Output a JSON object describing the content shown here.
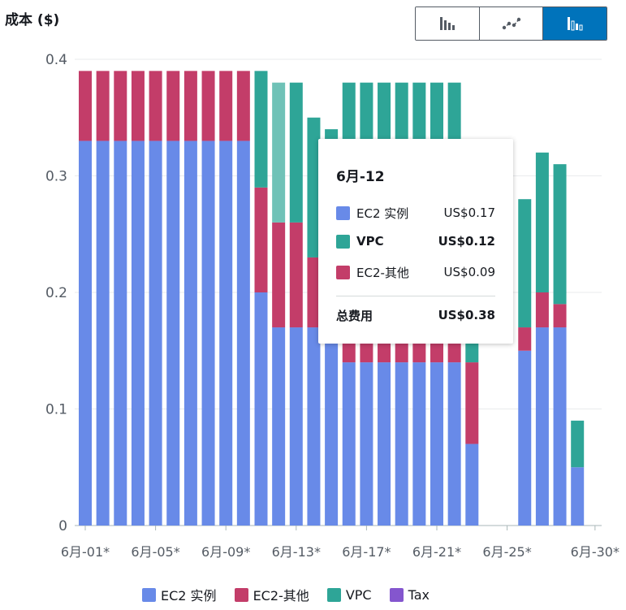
{
  "header": {
    "y_title": "成本 ($)"
  },
  "toggles": [
    {
      "name": "bar-chart-icon",
      "active": false
    },
    {
      "name": "line-chart-icon",
      "active": false
    },
    {
      "name": "stacked-bar-chart-icon",
      "active": true
    }
  ],
  "colors": {
    "ec2": "#688ae8",
    "ec2_other": "#c33d69",
    "vpc": "#2ea597",
    "vpc_highlight": "#6fc2b7",
    "tax": "#8456ce",
    "grid": "#e9ebed",
    "axis": "#aab7b8"
  },
  "chart_data": {
    "type": "bar",
    "stacked": true,
    "ylabel": "成本 ($)",
    "ylim": [
      0,
      0.4
    ],
    "yticks": [
      "0",
      "0.1",
      "0.2",
      "0.3",
      "0.4"
    ],
    "x_tick_labels": [
      "6月-01*",
      "6月-05*",
      "6月-09*",
      "6月-13*",
      "6月-17*",
      "6月-21*",
      "6月-25*",
      "6月-30*"
    ],
    "categories": [
      "6月-01",
      "6月-02",
      "6月-03",
      "6月-04",
      "6月-05",
      "6月-06",
      "6月-07",
      "6月-08",
      "6月-09",
      "6月-10",
      "6月-11",
      "6月-12",
      "6月-13",
      "6月-14",
      "6月-15",
      "6月-16",
      "6月-17",
      "6月-18",
      "6月-19",
      "6月-20",
      "6月-21",
      "6月-22",
      "6月-23",
      "6月-24",
      "6月-25",
      "6月-26",
      "6月-27",
      "6月-28",
      "6月-29",
      "6月-30"
    ],
    "highlight_index": 11,
    "series": [
      {
        "name": "EC2 实例",
        "color_key": "ec2",
        "values": [
          0.33,
          0.33,
          0.33,
          0.33,
          0.33,
          0.33,
          0.33,
          0.33,
          0.33,
          0.33,
          0.2,
          0.17,
          0.17,
          0.17,
          0.17,
          0.14,
          0.14,
          0.14,
          0.14,
          0.14,
          0.14,
          0.14,
          0.07,
          0,
          0,
          0.15,
          0.17,
          0.17,
          0.05,
          0
        ]
      },
      {
        "name": "EC2-其他",
        "color_key": "ec2_other",
        "values": [
          0.06,
          0.06,
          0.06,
          0.06,
          0.06,
          0.06,
          0.06,
          0.06,
          0.06,
          0.06,
          0.09,
          0.09,
          0.09,
          0.06,
          0.06,
          0.03,
          0.03,
          0.03,
          0.03,
          0.03,
          0.03,
          0.03,
          0.07,
          0,
          0,
          0.02,
          0.03,
          0.02,
          0,
          0
        ]
      },
      {
        "name": "VPC",
        "color_key": "vpc",
        "values": [
          0,
          0,
          0,
          0,
          0,
          0,
          0,
          0,
          0,
          0,
          0.1,
          0.12,
          0.12,
          0.12,
          0.11,
          0.21,
          0.21,
          0.21,
          0.21,
          0.21,
          0.21,
          0.21,
          0.02,
          0,
          0,
          0.11,
          0.12,
          0.12,
          0.04,
          0
        ]
      },
      {
        "name": "Tax",
        "color_key": "tax",
        "values": [
          0,
          0,
          0,
          0,
          0,
          0,
          0,
          0,
          0,
          0,
          0,
          0,
          0,
          0,
          0,
          0,
          0,
          0,
          0,
          0,
          0,
          0,
          0,
          0,
          0,
          0,
          0,
          0,
          0,
          0
        ]
      }
    ],
    "legend_position": "bottom-center",
    "grid": true
  },
  "tooltip": {
    "title": "6月-12",
    "rows": [
      {
        "name": "EC2 实例",
        "value": "US$0.17",
        "color_key": "ec2",
        "bold": false
      },
      {
        "name": "VPC",
        "value": "US$0.12",
        "color_key": "vpc",
        "bold": true
      },
      {
        "name": "EC2-其他",
        "value": "US$0.09",
        "color_key": "ec2_other",
        "bold": false
      }
    ],
    "total_label": "总费用",
    "total_value": "US$0.38"
  },
  "legend": [
    {
      "label": "EC2 实例",
      "color_key": "ec2"
    },
    {
      "label": "EC2-其他",
      "color_key": "ec2_other"
    },
    {
      "label": "VPC",
      "color_key": "vpc"
    },
    {
      "label": "Tax",
      "color_key": "tax"
    }
  ]
}
